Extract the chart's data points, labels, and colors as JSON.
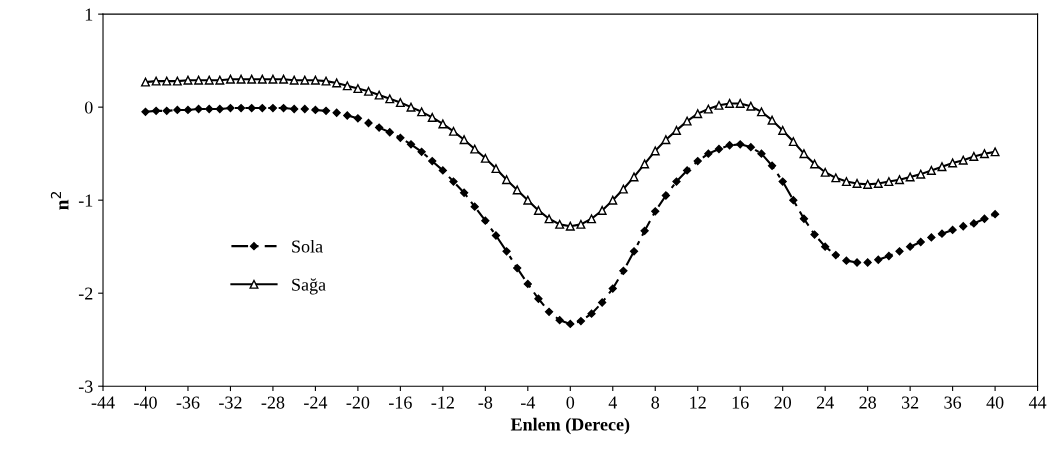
{
  "chart_data": {
    "type": "line",
    "xlabel": "Enlem (Derece)",
    "ylabel": "n$^{2}$",
    "x": [
      -40,
      -39,
      -38,
      -37,
      -36,
      -35,
      -34,
      -33,
      -32,
      -31,
      -30,
      -29,
      -28,
      -27,
      -26,
      -25,
      -24,
      -23,
      -22,
      -21,
      -20,
      -19,
      -18,
      -17,
      -16,
      -15,
      -14,
      -13,
      -12,
      -11,
      -10,
      -9,
      -8,
      -7,
      -6,
      -5,
      -4,
      -3,
      -2,
      -1,
      0,
      1,
      2,
      3,
      4,
      5,
      6,
      7,
      8,
      9,
      10,
      11,
      12,
      13,
      14,
      15,
      16,
      17,
      18,
      19,
      20,
      21,
      22,
      23,
      24,
      25,
      26,
      27,
      28,
      29,
      30,
      31,
      32,
      33,
      34,
      35,
      36,
      37,
      38,
      39,
      40
    ],
    "series": [
      {
        "name": "Sola",
        "color": "#000000",
        "marker": "diamond",
        "line_style": "dashed",
        "values": [
          -0.05,
          -0.04,
          -0.04,
          -0.03,
          -0.03,
          -0.02,
          -0.02,
          -0.02,
          -0.01,
          -0.01,
          -0.01,
          -0.01,
          -0.01,
          -0.01,
          -0.02,
          -0.02,
          -0.03,
          -0.04,
          -0.06,
          -0.09,
          -0.12,
          -0.17,
          -0.22,
          -0.27,
          -0.33,
          -0.4,
          -0.48,
          -0.58,
          -0.68,
          -0.8,
          -0.92,
          -1.07,
          -1.22,
          -1.38,
          -1.55,
          -1.73,
          -1.9,
          -2.06,
          -2.2,
          -2.29,
          -2.33,
          -2.3,
          -2.22,
          -2.1,
          -1.95,
          -1.76,
          -1.55,
          -1.33,
          -1.12,
          -0.95,
          -0.8,
          -0.68,
          -0.58,
          -0.5,
          -0.45,
          -0.41,
          -0.4,
          -0.43,
          -0.5,
          -0.63,
          -0.8,
          -1.0,
          -1.2,
          -1.37,
          -1.5,
          -1.59,
          -1.65,
          -1.67,
          -1.67,
          -1.64,
          -1.6,
          -1.55,
          -1.5,
          -1.45,
          -1.4,
          -1.36,
          -1.32,
          -1.28,
          -1.25,
          -1.2,
          -1.15
        ]
      },
      {
        "name": "Sağa",
        "color": "#000000",
        "marker": "triangle",
        "line_style": "solid",
        "values": [
          0.27,
          0.28,
          0.28,
          0.28,
          0.29,
          0.29,
          0.29,
          0.29,
          0.3,
          0.3,
          0.3,
          0.3,
          0.3,
          0.3,
          0.29,
          0.29,
          0.29,
          0.28,
          0.26,
          0.23,
          0.2,
          0.17,
          0.13,
          0.09,
          0.05,
          0.0,
          -0.05,
          -0.11,
          -0.18,
          -0.26,
          -0.35,
          -0.45,
          -0.55,
          -0.66,
          -0.78,
          -0.89,
          -1.0,
          -1.11,
          -1.2,
          -1.26,
          -1.28,
          -1.26,
          -1.2,
          -1.11,
          -1.0,
          -0.88,
          -0.75,
          -0.61,
          -0.47,
          -0.35,
          -0.25,
          -0.15,
          -0.07,
          -0.02,
          0.02,
          0.04,
          0.04,
          0.01,
          -0.05,
          -0.14,
          -0.25,
          -0.37,
          -0.5,
          -0.61,
          -0.7,
          -0.76,
          -0.8,
          -0.82,
          -0.83,
          -0.82,
          -0.8,
          -0.78,
          -0.75,
          -0.72,
          -0.68,
          -0.64,
          -0.6,
          -0.57,
          -0.53,
          -0.5,
          -0.48
        ]
      }
    ],
    "xlim": [
      -44,
      44
    ],
    "xticks": [
      -44,
      -40,
      -36,
      -32,
      -28,
      -24,
      -20,
      -16,
      -12,
      -8,
      -4,
      0,
      4,
      8,
      12,
      16,
      20,
      24,
      28,
      32,
      36,
      40,
      44
    ],
    "ylim": [
      -3,
      1
    ],
    "yticks": [
      -3,
      -2,
      -1,
      0,
      1
    ],
    "legend": "left",
    "grid": false
  }
}
